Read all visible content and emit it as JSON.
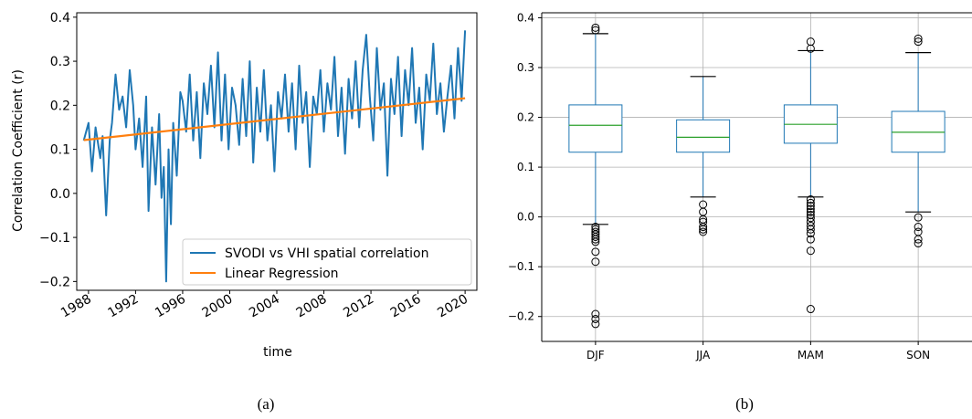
{
  "chart_data": [
    {
      "type": "line",
      "ylabel": "Correlation Coefficient (r)",
      "xlabel": "time",
      "caption": "(a)",
      "xlim": [
        1987.0,
        2021.0
      ],
      "ylim": [
        -0.22,
        0.41
      ],
      "x_ticks": [
        "1988",
        "1992",
        "1996",
        "2000",
        "2004",
        "2008",
        "2012",
        "2016",
        "2020"
      ],
      "x_tick_values": [
        1988,
        1992,
        1996,
        2000,
        2004,
        2008,
        2012,
        2016,
        2020
      ],
      "y_ticks": [
        "−0.2",
        "−0.1",
        "0.0",
        "0.1",
        "0.2",
        "0.3",
        "0.4"
      ],
      "y_tick_values": [
        -0.2,
        -0.1,
        0.0,
        0.1,
        0.2,
        0.3,
        0.4
      ],
      "grid": false,
      "legend_position": "bottom-right",
      "series": [
        {
          "name": "SVODI vs VHI spatial correlation",
          "color": "#1f77b4",
          "x": [
            1987.6,
            1988.0,
            1988.3,
            1988.6,
            1989.0,
            1989.2,
            1989.5,
            1989.8,
            1990.0,
            1990.3,
            1990.6,
            1990.9,
            1991.2,
            1991.5,
            1991.8,
            1992.0,
            1992.3,
            1992.6,
            1992.9,
            1993.1,
            1993.4,
            1993.7,
            1994.0,
            1994.2,
            1994.4,
            1994.6,
            1994.8,
            1995.0,
            1995.2,
            1995.5,
            1995.8,
            1996.0,
            1996.3,
            1996.6,
            1996.9,
            1997.2,
            1997.5,
            1997.8,
            1998.1,
            1998.4,
            1998.7,
            1999.0,
            1999.3,
            1999.6,
            1999.9,
            2000.2,
            2000.5,
            2000.8,
            2001.1,
            2001.4,
            2001.7,
            2002.0,
            2002.3,
            2002.6,
            2002.9,
            2003.2,
            2003.5,
            2003.8,
            2004.1,
            2004.4,
            2004.7,
            2005.0,
            2005.3,
            2005.6,
            2005.9,
            2006.2,
            2006.5,
            2006.8,
            2007.1,
            2007.4,
            2007.7,
            2008.0,
            2008.3,
            2008.6,
            2008.9,
            2009.2,
            2009.5,
            2009.8,
            2010.1,
            2010.4,
            2010.7,
            2011.0,
            2011.3,
            2011.6,
            2011.9,
            2012.2,
            2012.5,
            2012.8,
            2013.1,
            2013.4,
            2013.7,
            2014.0,
            2014.3,
            2014.6,
            2014.9,
            2015.2,
            2015.5,
            2015.8,
            2016.1,
            2016.4,
            2016.7,
            2017.0,
            2017.3,
            2017.6,
            2017.9,
            2018.2,
            2018.5,
            2018.8,
            2019.1,
            2019.4,
            2019.7,
            2020.0
          ],
          "y": [
            0.12,
            0.16,
            0.05,
            0.15,
            0.08,
            0.13,
            -0.05,
            0.12,
            0.16,
            0.27,
            0.19,
            0.22,
            0.15,
            0.28,
            0.2,
            0.1,
            0.17,
            0.06,
            0.22,
            -0.04,
            0.15,
            0.02,
            0.18,
            -0.01,
            0.06,
            -0.2,
            0.1,
            -0.07,
            0.16,
            0.04,
            0.23,
            0.21,
            0.14,
            0.27,
            0.12,
            0.23,
            0.08,
            0.25,
            0.18,
            0.29,
            0.15,
            0.32,
            0.12,
            0.27,
            0.1,
            0.24,
            0.2,
            0.11,
            0.26,
            0.13,
            0.3,
            0.07,
            0.24,
            0.14,
            0.28,
            0.12,
            0.2,
            0.05,
            0.23,
            0.17,
            0.27,
            0.14,
            0.25,
            0.1,
            0.29,
            0.16,
            0.23,
            0.06,
            0.22,
            0.18,
            0.28,
            0.14,
            0.25,
            0.19,
            0.31,
            0.13,
            0.24,
            0.09,
            0.26,
            0.17,
            0.3,
            0.15,
            0.28,
            0.36,
            0.22,
            0.12,
            0.33,
            0.19,
            0.25,
            0.04,
            0.26,
            0.18,
            0.31,
            0.13,
            0.28,
            0.2,
            0.33,
            0.16,
            0.24,
            0.1,
            0.27,
            0.21,
            0.34,
            0.18,
            0.25,
            0.14,
            0.22,
            0.29,
            0.17,
            0.33,
            0.21,
            0.37
          ]
        },
        {
          "name": "Linear Regression",
          "color": "#ff7f0e",
          "x": [
            1987.6,
            2020.0
          ],
          "y": [
            0.121,
            0.216
          ]
        }
      ]
    },
    {
      "type": "box",
      "caption": "(b)",
      "categories": [
        "DJF",
        "JJA",
        "MAM",
        "SON"
      ],
      "ylim": [
        -0.25,
        0.41
      ],
      "y_ticks": [
        "−0.2",
        "−0.1",
        "0.0",
        "0.1",
        "0.2",
        "0.3",
        "0.4"
      ],
      "y_tick_values": [
        -0.2,
        -0.1,
        0.0,
        0.1,
        0.2,
        0.3,
        0.4
      ],
      "grid": true,
      "box_color": "#1f77b4",
      "median_color": "#2ca02c",
      "boxes": [
        {
          "label": "DJF",
          "whisker_low": -0.015,
          "q1": 0.13,
          "median": 0.184,
          "q3": 0.225,
          "whisker_high": 0.368,
          "outliers": [
            0.38,
            0.375,
            -0.02,
            -0.025,
            -0.03,
            -0.035,
            -0.04,
            -0.045,
            -0.05,
            -0.07,
            -0.09,
            -0.195,
            -0.205,
            -0.215
          ]
        },
        {
          "label": "JJA",
          "whisker_low": 0.04,
          "q1": 0.13,
          "median": 0.16,
          "q3": 0.195,
          "whisker_high": 0.282,
          "outliers": [
            0.025,
            0.01,
            -0.005,
            -0.01,
            -0.02,
            -0.025,
            -0.03
          ]
        },
        {
          "label": "MAM",
          "whisker_low": 0.04,
          "q1": 0.148,
          "median": 0.186,
          "q3": 0.225,
          "whisker_high": 0.334,
          "outliers": [
            0.352,
            0.338,
            0.035,
            0.028,
            0.022,
            0.016,
            0.01,
            0.004,
            -0.002,
            -0.01,
            -0.018,
            -0.025,
            -0.033,
            -0.045,
            -0.068,
            -0.185
          ]
        },
        {
          "label": "SON",
          "whisker_low": 0.01,
          "q1": 0.13,
          "median": 0.17,
          "q3": 0.212,
          "whisker_high": 0.33,
          "outliers": [
            0.358,
            0.352,
            -0.001,
            -0.02,
            -0.03,
            -0.045,
            -0.053
          ]
        }
      ]
    }
  ]
}
